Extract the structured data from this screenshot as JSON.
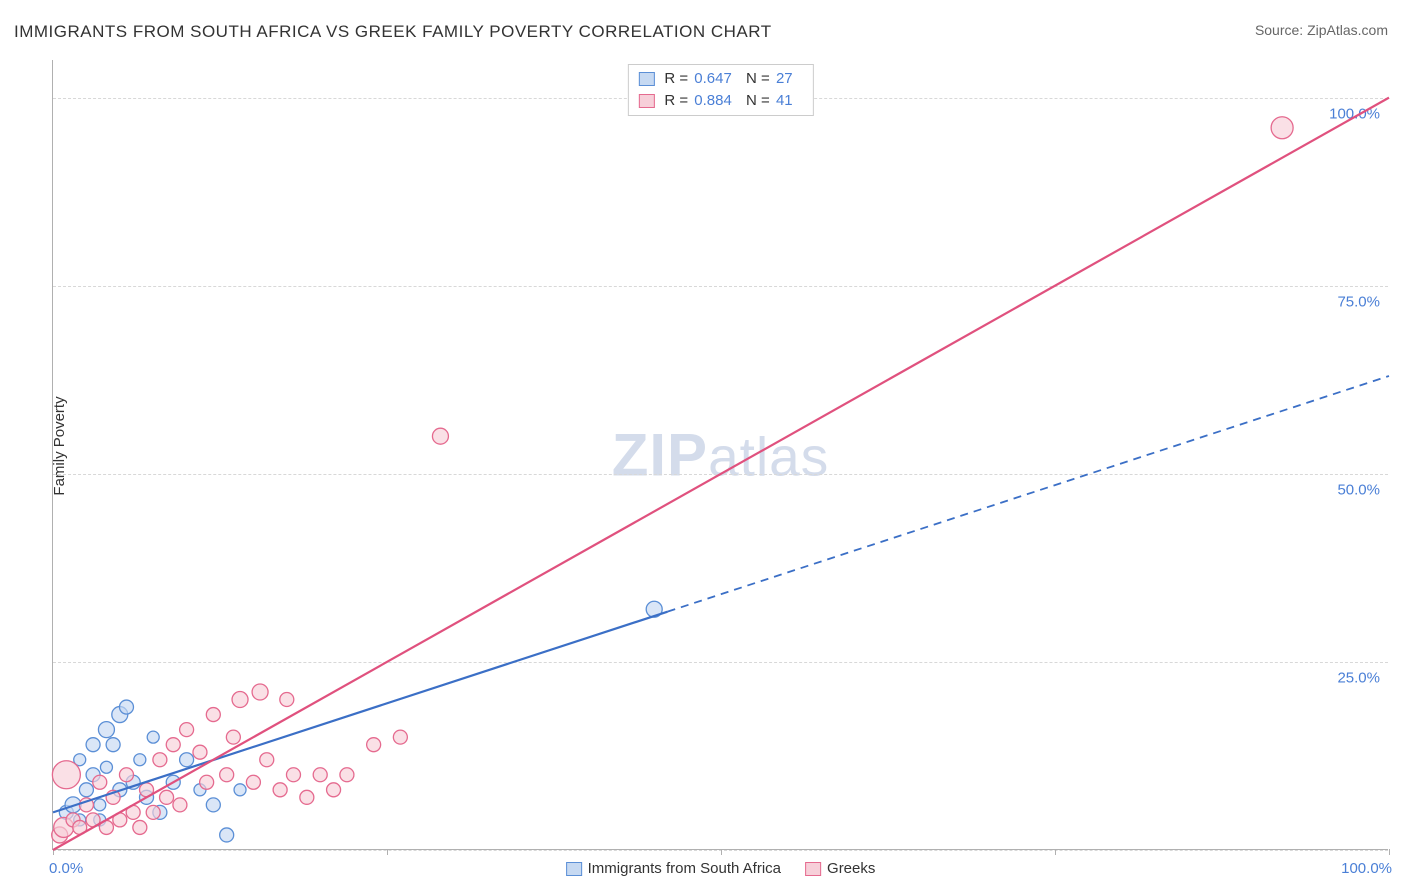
{
  "title": "IMMIGRANTS FROM SOUTH AFRICA VS GREEK FAMILY POVERTY CORRELATION CHART",
  "source": "Source: ZipAtlas.com",
  "watermark": "ZIPatlas",
  "ylabel": "Family Poverty",
  "chart": {
    "type": "scatter",
    "xlim": [
      0,
      100
    ],
    "ylim": [
      0,
      105
    ],
    "xtick_positions": [
      0,
      25,
      50,
      75,
      100
    ],
    "xtick_labels": [
      "0.0%",
      "",
      "",
      "",
      "100.0%"
    ],
    "ytick_positions": [
      25,
      50,
      75,
      100
    ],
    "ytick_labels": [
      "25.0%",
      "50.0%",
      "75.0%",
      "100.0%"
    ],
    "grid_positions": [
      0,
      25,
      50,
      75,
      100
    ],
    "background_color": "#ffffff",
    "grid_color": "#d8d8d8",
    "axis_color": "#b0b0b0",
    "tick_label_color": "#4a7fd6",
    "label_fontsize": 15
  },
  "series": [
    {
      "name": "Immigrants from South Africa",
      "color_fill": "#c6d9f2",
      "color_stroke": "#5b8fd6",
      "line_color": "#3b6fc6",
      "r_value": "0.647",
      "n_value": "27",
      "trend": {
        "x1": 0,
        "y1": 5,
        "x2": 100,
        "y2": 63,
        "solid_until_x": 46
      },
      "points": [
        {
          "x": 1,
          "y": 5,
          "r": 7
        },
        {
          "x": 1.5,
          "y": 6,
          "r": 8
        },
        {
          "x": 2,
          "y": 4,
          "r": 6
        },
        {
          "x": 2.5,
          "y": 8,
          "r": 7
        },
        {
          "x": 3,
          "y": 10,
          "r": 7
        },
        {
          "x": 3.5,
          "y": 6,
          "r": 6
        },
        {
          "x": 4,
          "y": 16,
          "r": 8
        },
        {
          "x": 4.5,
          "y": 14,
          "r": 7
        },
        {
          "x": 5,
          "y": 18,
          "r": 8
        },
        {
          "x": 5.5,
          "y": 19,
          "r": 7
        },
        {
          "x": 6,
          "y": 9,
          "r": 7
        },
        {
          "x": 6.5,
          "y": 12,
          "r": 6
        },
        {
          "x": 7,
          "y": 7,
          "r": 7
        },
        {
          "x": 7.5,
          "y": 15,
          "r": 6
        },
        {
          "x": 8,
          "y": 5,
          "r": 7
        },
        {
          "x": 9,
          "y": 9,
          "r": 7
        },
        {
          "x": 10,
          "y": 12,
          "r": 7
        },
        {
          "x": 11,
          "y": 8,
          "r": 6
        },
        {
          "x": 12,
          "y": 6,
          "r": 7
        },
        {
          "x": 13,
          "y": 2,
          "r": 7
        },
        {
          "x": 14,
          "y": 8,
          "r": 6
        },
        {
          "x": 3,
          "y": 14,
          "r": 7
        },
        {
          "x": 4,
          "y": 11,
          "r": 6
        },
        {
          "x": 2,
          "y": 12,
          "r": 6
        },
        {
          "x": 5,
          "y": 8,
          "r": 7
        },
        {
          "x": 3.5,
          "y": 4,
          "r": 6
        },
        {
          "x": 45,
          "y": 32,
          "r": 8
        }
      ]
    },
    {
      "name": "Greeks",
      "color_fill": "#f7cfd9",
      "color_stroke": "#e56a8f",
      "line_color": "#e0517e",
      "r_value": "0.884",
      "n_value": "41",
      "trend": {
        "x1": 0,
        "y1": 0,
        "x2": 100,
        "y2": 100,
        "solid_until_x": 100
      },
      "points": [
        {
          "x": 0.5,
          "y": 2,
          "r": 8
        },
        {
          "x": 0.8,
          "y": 3,
          "r": 10
        },
        {
          "x": 1,
          "y": 10,
          "r": 14
        },
        {
          "x": 1.5,
          "y": 4,
          "r": 7
        },
        {
          "x": 2,
          "y": 3,
          "r": 7
        },
        {
          "x": 2.5,
          "y": 6,
          "r": 7
        },
        {
          "x": 3,
          "y": 4,
          "r": 7
        },
        {
          "x": 3.5,
          "y": 9,
          "r": 7
        },
        {
          "x": 4,
          "y": 3,
          "r": 7
        },
        {
          "x": 4.5,
          "y": 7,
          "r": 7
        },
        {
          "x": 5,
          "y": 4,
          "r": 7
        },
        {
          "x": 5.5,
          "y": 10,
          "r": 7
        },
        {
          "x": 6,
          "y": 5,
          "r": 7
        },
        {
          "x": 6.5,
          "y": 3,
          "r": 7
        },
        {
          "x": 7,
          "y": 8,
          "r": 7
        },
        {
          "x": 7.5,
          "y": 5,
          "r": 7
        },
        {
          "x": 8,
          "y": 12,
          "r": 7
        },
        {
          "x": 8.5,
          "y": 7,
          "r": 7
        },
        {
          "x": 9,
          "y": 14,
          "r": 7
        },
        {
          "x": 9.5,
          "y": 6,
          "r": 7
        },
        {
          "x": 10,
          "y": 16,
          "r": 7
        },
        {
          "x": 11,
          "y": 13,
          "r": 7
        },
        {
          "x": 11.5,
          "y": 9,
          "r": 7
        },
        {
          "x": 12,
          "y": 18,
          "r": 7
        },
        {
          "x": 13,
          "y": 10,
          "r": 7
        },
        {
          "x": 13.5,
          "y": 15,
          "r": 7
        },
        {
          "x": 14,
          "y": 20,
          "r": 8
        },
        {
          "x": 15,
          "y": 9,
          "r": 7
        },
        {
          "x": 15.5,
          "y": 21,
          "r": 8
        },
        {
          "x": 16,
          "y": 12,
          "r": 7
        },
        {
          "x": 17,
          "y": 8,
          "r": 7
        },
        {
          "x": 17.5,
          "y": 20,
          "r": 7
        },
        {
          "x": 18,
          "y": 10,
          "r": 7
        },
        {
          "x": 19,
          "y": 7,
          "r": 7
        },
        {
          "x": 20,
          "y": 10,
          "r": 7
        },
        {
          "x": 21,
          "y": 8,
          "r": 7
        },
        {
          "x": 22,
          "y": 10,
          "r": 7
        },
        {
          "x": 24,
          "y": 14,
          "r": 7
        },
        {
          "x": 26,
          "y": 15,
          "r": 7
        },
        {
          "x": 29,
          "y": 55,
          "r": 8
        },
        {
          "x": 92,
          "y": 96,
          "r": 11
        }
      ]
    }
  ],
  "legend": {
    "r_label": "R =",
    "n_label": "N ="
  }
}
